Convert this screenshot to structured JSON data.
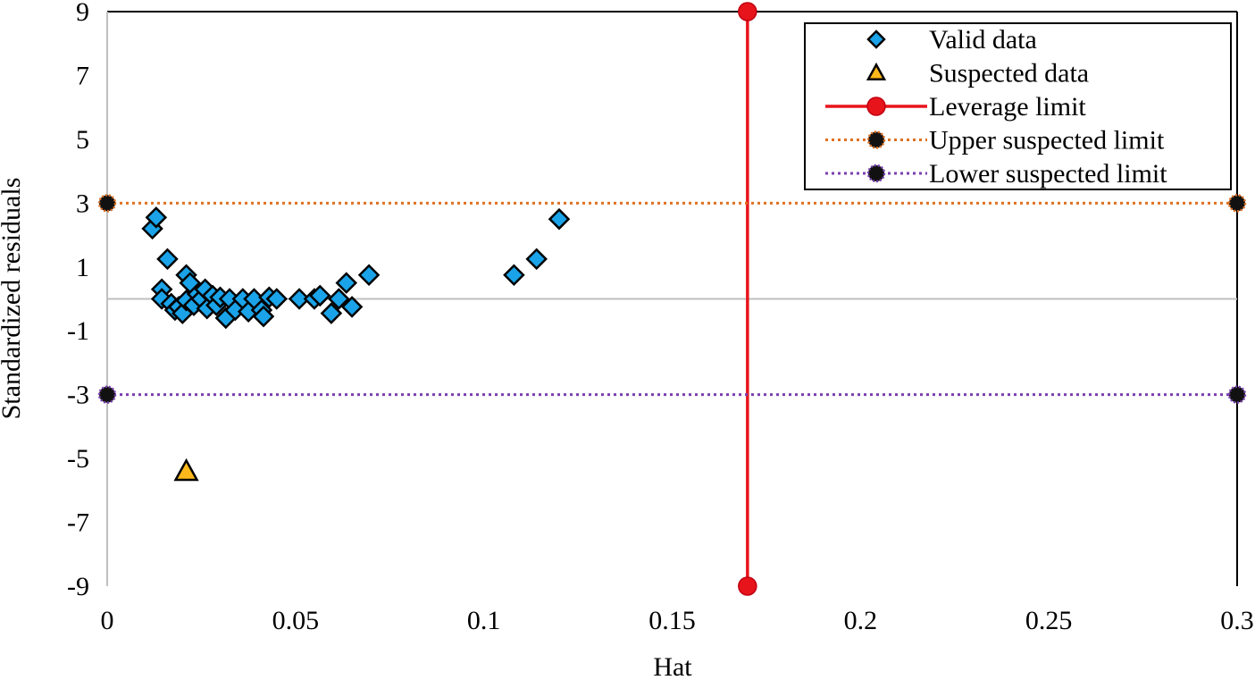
{
  "chart_data": {
    "type": "scatter",
    "title": "",
    "xlabel": "Hat",
    "ylabel": "Standardized residuals",
    "xlim": [
      0,
      0.3
    ],
    "ylim": [
      -9,
      9
    ],
    "x_ticks": [
      0,
      0.05,
      0.1,
      0.15,
      0.2,
      0.25,
      0.3
    ],
    "x_tick_labels": [
      "0",
      "0.05",
      "0.1",
      "0.15",
      "0.2",
      "0.25",
      "0.3"
    ],
    "y_ticks": [
      -9,
      -7,
      -5,
      -3,
      -1,
      1,
      3,
      5,
      7,
      9
    ],
    "y_tick_labels": [
      "-9",
      "-7",
      "-5",
      "-3",
      "-1",
      "1",
      "3",
      "5",
      "7",
      "9"
    ],
    "legend_position": "top-right",
    "series": [
      {
        "name": "Valid data",
        "marker": "diamond",
        "color": "#1aa3e8",
        "points": [
          [
            0.012,
            2.2
          ],
          [
            0.013,
            2.55
          ],
          [
            0.0145,
            0.3
          ],
          [
            0.0145,
            0.0
          ],
          [
            0.016,
            1.25
          ],
          [
            0.017,
            -0.15
          ],
          [
            0.018,
            -0.35
          ],
          [
            0.019,
            -0.25
          ],
          [
            0.02,
            -0.45
          ],
          [
            0.021,
            0.75
          ],
          [
            0.021,
            -0.05
          ],
          [
            0.022,
            0.5
          ],
          [
            0.023,
            -0.2
          ],
          [
            0.024,
            0.15
          ],
          [
            0.025,
            0.0
          ],
          [
            0.026,
            0.3
          ],
          [
            0.0265,
            -0.3
          ],
          [
            0.028,
            0.1
          ],
          [
            0.029,
            -0.2
          ],
          [
            0.03,
            0.05
          ],
          [
            0.0315,
            -0.6
          ],
          [
            0.0325,
            0.0
          ],
          [
            0.034,
            -0.35
          ],
          [
            0.036,
            0.0
          ],
          [
            0.0375,
            -0.4
          ],
          [
            0.039,
            0.0
          ],
          [
            0.041,
            -0.35
          ],
          [
            0.0415,
            -0.55
          ],
          [
            0.043,
            0.05
          ],
          [
            0.045,
            0.0
          ],
          [
            0.051,
            0.0
          ],
          [
            0.055,
            0.0
          ],
          [
            0.0565,
            0.1
          ],
          [
            0.0595,
            -0.45
          ],
          [
            0.0615,
            0.0
          ],
          [
            0.0635,
            0.5
          ],
          [
            0.065,
            -0.25
          ],
          [
            0.0695,
            0.75
          ],
          [
            0.108,
            0.75
          ],
          [
            0.114,
            1.25
          ],
          [
            0.12,
            2.5
          ]
        ]
      },
      {
        "name": "Suspected data",
        "marker": "triangle",
        "color": "#ffb81c",
        "points": [
          [
            0.021,
            -5.4
          ]
        ]
      },
      {
        "name": "Leverage limit",
        "marker": "circle",
        "line": "solid",
        "color": "#e8141c",
        "points": [
          [
            0.17,
            9
          ],
          [
            0.17,
            -9
          ]
        ]
      },
      {
        "name": "Upper suspected limit",
        "marker": "circle",
        "line": "dotted",
        "color": "#e07020",
        "points": [
          [
            0,
            3
          ],
          [
            0.3,
            3
          ]
        ]
      },
      {
        "name": "Lower suspected limit",
        "marker": "circle",
        "line": "dotted",
        "color": "#7a3fb0",
        "points": [
          [
            0,
            -3
          ],
          [
            0.3,
            -3
          ]
        ]
      }
    ]
  }
}
